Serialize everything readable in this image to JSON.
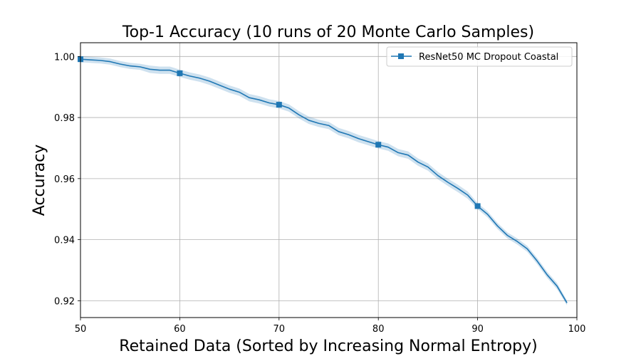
{
  "chart_data": {
    "type": "line",
    "title": "Top-1 Accuracy (10 runs of 20 Monte Carlo Samples)",
    "xlabel": "Retained Data (Sorted by Increasing Normal Entropy)",
    "ylabel": "Accuracy",
    "xlim": [
      50,
      100
    ],
    "ylim": [
      0.9145,
      1.0045
    ],
    "x_ticks": [
      50,
      60,
      70,
      80,
      90,
      100
    ],
    "x_tick_labels": [
      "50",
      "60",
      "70",
      "80",
      "90",
      "100"
    ],
    "y_ticks": [
      0.92,
      0.94,
      0.96,
      0.98,
      1.0
    ],
    "y_tick_labels": [
      "0.92",
      "0.94",
      "0.96",
      "0.98",
      "1.00"
    ],
    "grid": true,
    "legend_position": "top-right",
    "series": [
      {
        "name": "ResNet50 MC Dropout Coastal",
        "color": "#1f77b4",
        "band_color": "#1f77b4",
        "marker": "square",
        "marker_x": [
          50,
          60,
          70,
          80,
          90
        ],
        "x": [
          50,
          51,
          52,
          53,
          54,
          55,
          56,
          57,
          58,
          59,
          60,
          61,
          62,
          63,
          64,
          65,
          66,
          67,
          68,
          69,
          70,
          71,
          72,
          73,
          74,
          75,
          76,
          77,
          78,
          79,
          80,
          81,
          82,
          83,
          84,
          85,
          86,
          87,
          88,
          89,
          90,
          91,
          92,
          93,
          94,
          95,
          96,
          97,
          98,
          99
        ],
        "y": [
          0.9991,
          0.9989,
          0.9987,
          0.9983,
          0.9975,
          0.9969,
          0.9966,
          0.9958,
          0.9955,
          0.9955,
          0.9945,
          0.9936,
          0.9929,
          0.9919,
          0.9906,
          0.9893,
          0.9883,
          0.9865,
          0.9858,
          0.9848,
          0.9842,
          0.9831,
          0.9809,
          0.9791,
          0.9781,
          0.9774,
          0.9754,
          0.9744,
          0.9731,
          0.9721,
          0.9711,
          0.9703,
          0.9685,
          0.9677,
          0.9654,
          0.9638,
          0.961,
          0.9588,
          0.9568,
          0.9546,
          0.951,
          0.9483,
          0.9445,
          0.9414,
          0.9394,
          0.937,
          0.933,
          0.9285,
          0.9248,
          0.9193
        ],
        "band": [
          0.001,
          0.001,
          0.001,
          0.001,
          0.001,
          0.001,
          0.001,
          0.0012,
          0.0012,
          0.0012,
          0.0012,
          0.0012,
          0.0012,
          0.0012,
          0.0012,
          0.0012,
          0.0012,
          0.0012,
          0.0012,
          0.0012,
          0.0012,
          0.0012,
          0.0012,
          0.0012,
          0.0012,
          0.0012,
          0.0012,
          0.0012,
          0.0012,
          0.0012,
          0.0012,
          0.0012,
          0.0012,
          0.0012,
          0.0012,
          0.0012,
          0.0012,
          0.0012,
          0.0012,
          0.0012,
          0.001,
          0.001,
          0.001,
          0.001,
          0.001,
          0.001,
          0.001,
          0.001,
          0.001,
          0.0008
        ]
      }
    ]
  }
}
